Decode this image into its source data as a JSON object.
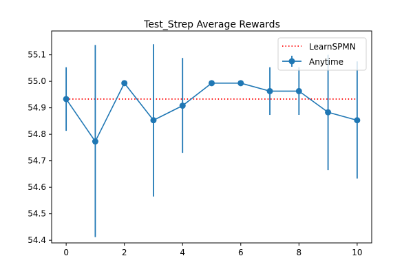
{
  "chart_data": {
    "type": "line",
    "title": "Test_Strep Average Rewards",
    "xlabel": "",
    "ylabel": "",
    "xlim": [
      -0.5,
      10.5
    ],
    "ylim": [
      54.39,
      55.19
    ],
    "x_ticks": [
      0,
      2,
      4,
      6,
      8,
      10
    ],
    "y_ticks": [
      54.4,
      54.5,
      54.6,
      54.7,
      54.8,
      54.9,
      55.0,
      55.1
    ],
    "y_tick_labels": [
      "54.4",
      "54.5",
      "54.6",
      "54.7",
      "54.8",
      "54.9",
      "55.0",
      "55.1"
    ],
    "grid": false,
    "legend_position": "top-right",
    "series": [
      {
        "name": "LearnSPMN",
        "style": "dotted",
        "color": "#ff0000",
        "x": [
          0,
          10
        ],
        "y": [
          54.933,
          54.933
        ]
      },
      {
        "name": "Anytime",
        "style": "line-marker-errorbar",
        "color": "#1f77b4",
        "x": [
          0,
          1,
          2,
          3,
          4,
          5,
          6,
          7,
          8,
          9,
          10
        ],
        "y": [
          54.933,
          54.773,
          54.993,
          54.853,
          54.908,
          54.993,
          54.993,
          54.963,
          54.963,
          54.883,
          54.853
        ],
        "error_low": [
          54.813,
          54.412,
          54.993,
          54.565,
          54.73,
          54.993,
          54.993,
          54.873,
          54.873,
          54.665,
          54.633
        ],
        "error_high": [
          55.053,
          55.137,
          54.993,
          55.14,
          55.088,
          54.993,
          54.993,
          55.053,
          55.053,
          55.1,
          55.075
        ]
      }
    ]
  }
}
